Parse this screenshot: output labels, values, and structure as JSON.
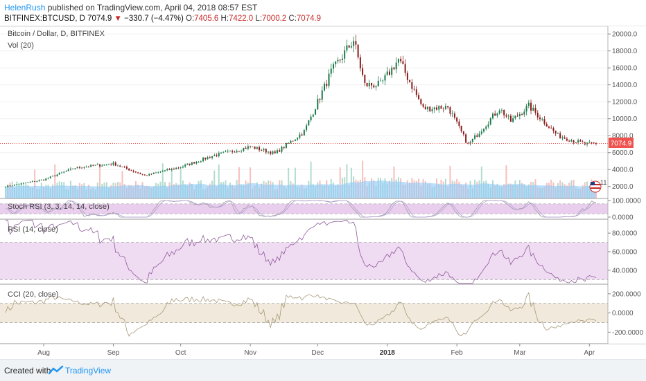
{
  "header": {
    "user": "HelenRush",
    "published": " published on TradingView.com, April 04, 2018 08:57 EST",
    "symbol": "BITFINEX:BTCUSD, D",
    "last": "7074.9",
    "change": "−330.7 (−4.47%)",
    "o_label": "O:",
    "o_val": "7405.6",
    "h_label": "H:",
    "h_val": "7422.0",
    "l_label": "L:",
    "l_val": "7000.2",
    "c_label": "C:",
    "c_val": "7074.9"
  },
  "panes": {
    "main_title": "Bitcoin / Dollar, D, BITFINEX",
    "vol_title": "Vol (20)",
    "stoch_title": "Stoch RSI (3, 3, 14, 14, close)",
    "rsi_title": "RSI (14, close)",
    "cci_title": "CCI (20, close)"
  },
  "price_badge": "7074.9",
  "marker_count": "11",
  "footer": {
    "created": "Created with",
    "brand": "TradingView"
  },
  "colors": {
    "up": "#26a69a",
    "down": "#ef5350",
    "dark_up": "#1b7a4a",
    "dark_down": "#8b1a1a",
    "stoch": "#e1bee7",
    "rsi": "#e1bee7",
    "cci": "#ede4d3",
    "vol_ma": "#90caf9",
    "badge": "#ef5350"
  },
  "chart_data": {
    "type": "candlestick",
    "title": "Bitcoin / Dollar, D, BITFINEX",
    "x_ticks": [
      "Aug",
      "Sep",
      "Oct",
      "Nov",
      "Dec",
      "2018",
      "Feb",
      "Mar",
      "Apr"
    ],
    "price_axis": {
      "ticks": [
        "20000.0",
        "18000.0",
        "16000.0",
        "14000.0",
        "12000.0",
        "10000.0",
        "8000.0",
        "6000.0",
        "4000.0",
        "2000.0"
      ],
      "ylim": [
        1000,
        20500
      ]
    },
    "stoch_axis": {
      "ticks": [
        "100.0000",
        "0.0000"
      ],
      "ylim": [
        0,
        100
      ]
    },
    "rsi_axis": {
      "ticks": [
        "80.0000",
        "60.0000",
        "40.0000"
      ],
      "ylim": [
        25,
        95
      ]
    },
    "cci_axis": {
      "ticks": [
        "200.0000",
        "0.0000",
        "-200.0000"
      ],
      "ylim": [
        -320,
        300
      ]
    },
    "anchors": [
      [
        "2017-07-15",
        2000
      ],
      [
        "2017-08-01",
        2800
      ],
      [
        "2017-08-15",
        4200
      ],
      [
        "2017-09-01",
        4700
      ],
      [
        "2017-09-15",
        3300
      ],
      [
        "2017-10-01",
        4300
      ],
      [
        "2017-10-15",
        5600
      ],
      [
        "2017-11-01",
        6700
      ],
      [
        "2017-11-12",
        5900
      ],
      [
        "2017-11-25",
        8500
      ],
      [
        "2017-12-07",
        15500
      ],
      [
        "2017-12-17",
        19300
      ],
      [
        "2017-12-22",
        14000
      ],
      [
        "2017-12-29",
        14000
      ],
      [
        "2018-01-06",
        17000
      ],
      [
        "2018-01-17",
        11200
      ],
      [
        "2018-01-28",
        11400
      ],
      [
        "2018-02-06",
        6900
      ],
      [
        "2018-02-20",
        11200
      ],
      [
        "2018-02-25",
        9700
      ],
      [
        "2018-03-05",
        11500
      ],
      [
        "2018-03-18",
        8000
      ],
      [
        "2018-03-30",
        7000
      ],
      [
        "2018-04-04",
        7074.9
      ]
    ]
  }
}
